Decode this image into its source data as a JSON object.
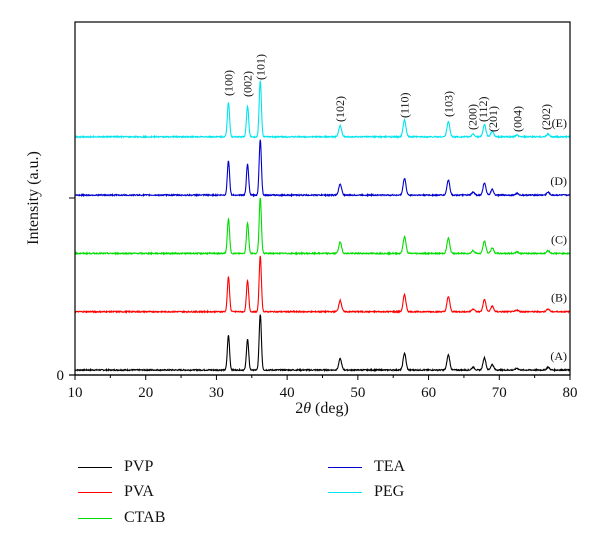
{
  "chart_data": {
    "type": "line",
    "title": "",
    "xlabel_prefix": "2",
    "xlabel_theta": "θ",
    "xlabel_suffix": " (deg)",
    "ylabel": "Intensity (a.u.)",
    "xlim": [
      10,
      80
    ],
    "xticks": [
      "10",
      "20",
      "30",
      "40",
      "50",
      "60",
      "70",
      "80"
    ],
    "yticks": [
      "0"
    ],
    "grid": false,
    "legend_placement": "bottom",
    "peaks": [
      {
        "hkl": "(100)",
        "x": 31.7,
        "rel": 0.62
      },
      {
        "hkl": "(002)",
        "x": 34.4,
        "rel": 0.55
      },
      {
        "hkl": "(101)",
        "x": 36.2,
        "rel": 1.0
      },
      {
        "hkl": "(102)",
        "x": 47.5,
        "rel": 0.2
      },
      {
        "hkl": "(110)",
        "x": 56.6,
        "rel": 0.3
      },
      {
        "hkl": "(103)",
        "x": 62.8,
        "rel": 0.27
      },
      {
        "hkl": "(200)",
        "x": 66.3,
        "rel": 0.05
      },
      {
        "hkl": "(112)",
        "x": 67.9,
        "rel": 0.22
      },
      {
        "hkl": "(201)",
        "x": 69.0,
        "rel": 0.1
      },
      {
        "hkl": "(004)",
        "x": 72.5,
        "rel": 0.03
      },
      {
        "hkl": "(202)",
        "x": 76.9,
        "rel": 0.05
      }
    ],
    "series": [
      {
        "name": "PVP",
        "tag": "(A)",
        "color": "#000000",
        "offset": 0
      },
      {
        "name": "PVA",
        "tag": "(B)",
        "color": "#ff0000",
        "offset": 1
      },
      {
        "name": "CTAB",
        "tag": "(C)",
        "color": "#00dd00",
        "offset": 2
      },
      {
        "name": "TEA",
        "tag": "(D)",
        "color": "#0000cc",
        "offset": 3
      },
      {
        "name": "PEG",
        "tag": "(E)",
        "color": "#00e5ee",
        "offset": 4
      }
    ]
  }
}
